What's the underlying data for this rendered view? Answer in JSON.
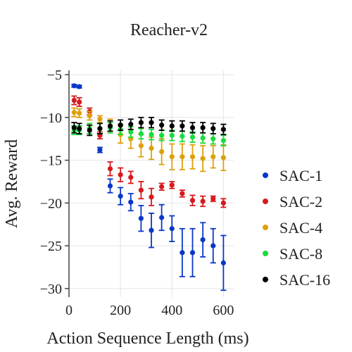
{
  "chart_data": {
    "type": "scatter",
    "title": "Reacher-v2",
    "xlabel": "Action Sequence Length (ms)",
    "ylabel": "Avg. Reward",
    "xlim": [
      0,
      640
    ],
    "ylim": [
      -31,
      -4.5
    ],
    "xticks": [
      0,
      200,
      400,
      600
    ],
    "yticks": [
      -5,
      -10,
      -15,
      -20,
      -25,
      -30
    ],
    "x_tick_labels": [
      "0",
      "200",
      "400",
      "600"
    ],
    "y_tick_labels": [
      "−5",
      "−10",
      "−15",
      "−20",
      "−25",
      "−30"
    ],
    "grid": true,
    "legend_position": "right",
    "series": [
      {
        "name": "SAC-1",
        "color": "#0a37c8",
        "x": [
          20,
          40,
          120,
          160,
          200,
          240,
          280,
          320,
          360,
          400,
          440,
          480,
          520,
          560,
          600
        ],
        "y": [
          -6.3,
          -6.4,
          -13.8,
          -18.0,
          -19.2,
          -19.9,
          -21.8,
          -23.2,
          -21.7,
          -23.0,
          -25.8,
          -25.8,
          -24.3,
          -25.0,
          -27.0
        ],
        "err": [
          0.15,
          0.15,
          0.3,
          0.8,
          1.0,
          1.0,
          1.5,
          2.0,
          1.5,
          1.5,
          2.8,
          2.8,
          2.0,
          2.0,
          3.2
        ]
      },
      {
        "name": "SAC-2",
        "color": "#d7191c",
        "x": [
          20,
          40,
          80,
          120,
          160,
          200,
          240,
          280,
          320,
          360,
          400,
          440,
          480,
          520,
          560,
          600
        ],
        "y": [
          -8.0,
          -8.2,
          -9.3,
          -12.1,
          -16.0,
          -16.7,
          -17.0,
          -18.5,
          -19.3,
          -18.1,
          -17.9,
          -18.9,
          -19.7,
          -19.8,
          -19.5,
          -20.0
        ],
        "err": [
          0.5,
          0.5,
          0.4,
          0.4,
          0.8,
          0.8,
          0.7,
          1.0,
          1.0,
          0.4,
          0.4,
          0.4,
          0.6,
          0.6,
          0.3,
          0.5
        ]
      },
      {
        "name": "SAC-4",
        "color": "#dea00a",
        "x": [
          20,
          40,
          80,
          120,
          160,
          200,
          240,
          280,
          320,
          360,
          400,
          440,
          480,
          520,
          560,
          600
        ],
        "y": [
          -9.4,
          -9.5,
          -9.8,
          -10.2,
          -11.0,
          -12.0,
          -12.5,
          -13.3,
          -13.6,
          -14.0,
          -14.6,
          -14.6,
          -14.6,
          -14.8,
          -14.6,
          -14.7
        ],
        "err": [
          0.5,
          0.5,
          0.5,
          0.4,
          0.8,
          1.0,
          1.1,
          1.3,
          1.3,
          1.5,
          1.5,
          1.5,
          1.4,
          1.5,
          1.3,
          1.5
        ]
      },
      {
        "name": "SAC-8",
        "color": "#18dc3c",
        "x": [
          20,
          40,
          80,
          120,
          160,
          200,
          240,
          280,
          320,
          360,
          400,
          440,
          480,
          520,
          560,
          600
        ],
        "y": [
          -11.5,
          -11.5,
          -11.3,
          -11.3,
          -11.2,
          -11.4,
          -11.7,
          -11.9,
          -12.0,
          -12.1,
          -12.1,
          -12.2,
          -12.3,
          -12.4,
          -12.5,
          -12.7
        ],
        "err": [
          0.5,
          0.5,
          0.6,
          0.6,
          0.6,
          0.6,
          0.6,
          0.6,
          0.6,
          0.6,
          0.6,
          0.6,
          0.6,
          0.6,
          0.6,
          0.6
        ]
      },
      {
        "name": "SAC-16",
        "color": "#000000",
        "x": [
          20,
          40,
          80,
          120,
          160,
          200,
          240,
          280,
          320,
          360,
          400,
          440,
          480,
          520,
          560,
          600
        ],
        "y": [
          -11.2,
          -11.3,
          -11.5,
          -11.3,
          -11.0,
          -10.9,
          -10.8,
          -10.6,
          -10.6,
          -10.9,
          -11.0,
          -11.0,
          -11.2,
          -11.2,
          -11.3,
          -11.4
        ],
        "err": [
          0.6,
          0.6,
          0.6,
          0.6,
          0.6,
          0.6,
          0.6,
          0.6,
          0.6,
          0.6,
          0.6,
          0.6,
          0.6,
          0.6,
          0.6,
          0.6
        ]
      }
    ]
  }
}
